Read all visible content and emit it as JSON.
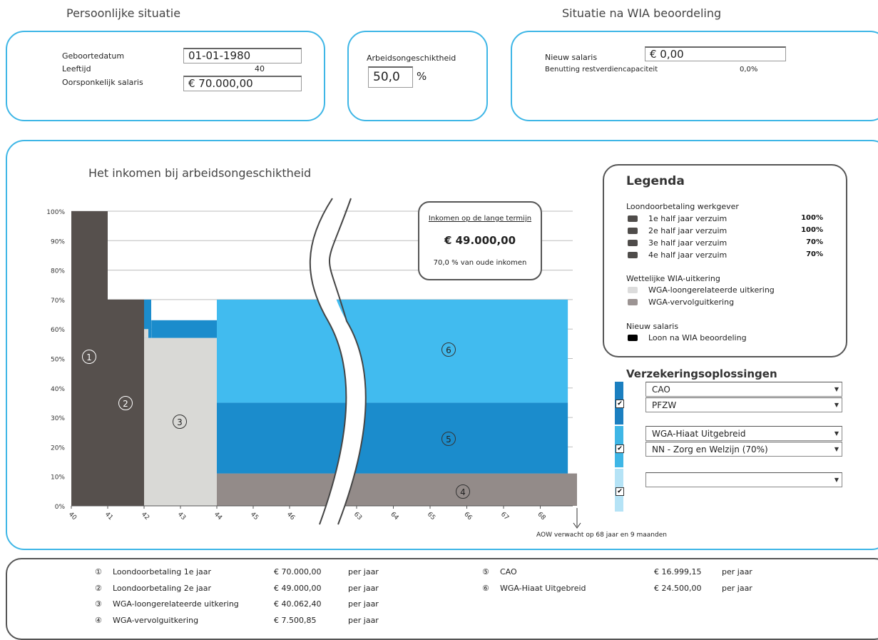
{
  "headers": {
    "personal": "Persoonlijke situatie",
    "after_wia": "Situatie na WIA beoordeling"
  },
  "personal": {
    "dob_label": "Geboortedatum",
    "dob_value": "01-01-1980",
    "age_label": "Leeftijd",
    "age_value": "40",
    "salary_label": "Oorsponkelijk salaris",
    "salary_value": "€ 70.000,00"
  },
  "disability": {
    "label": "Arbeidsongeschiktheid",
    "value": "50,0",
    "unit": "%"
  },
  "after_wia": {
    "new_salary_label": "Nieuw salaris",
    "new_salary_value": "€ 0,00",
    "capacity_label": "Benutting restverdiencapaciteit",
    "capacity_value": "0,0%"
  },
  "chart_title": "Het inkomen bij arbeidsongeschiktheid",
  "long_term": {
    "title": "Inkomen op de lange termijn",
    "amount": "€ 49.000,00",
    "note": "70,0 % van oude inkomen"
  },
  "aow_note": "AOW verwacht op 68 jaar en 9 maanden",
  "chart_data": {
    "type": "area",
    "y_ticks": [
      "0%",
      "10%",
      "20%",
      "30%",
      "40%",
      "50%",
      "60%",
      "70%",
      "80%",
      "90%",
      "100%"
    ],
    "x_ticks": [
      "40",
      "41",
      "42",
      "43",
      "44",
      "45",
      "46",
      "63",
      "64",
      "65",
      "66",
      "67",
      "68"
    ],
    "ylim": [
      0,
      100
    ],
    "axis_break": {
      "from_age": 46,
      "to_age": 63
    },
    "segments": [
      {
        "id": "1",
        "name": "Loondoorbetaling 1e jaar",
        "color": "#56504d",
        "x": [
          40,
          41
        ],
        "y": [
          0,
          100
        ]
      },
      {
        "id": "1b",
        "name": "Loondoorbetaling 1e jaar",
        "color": "#56504d",
        "x": [
          41,
          42
        ],
        "y": [
          0,
          70
        ]
      },
      {
        "id": "3",
        "name": "WGA-loongerelateerde uitkering",
        "color": "#d9d9d6",
        "x": [
          42,
          44
        ],
        "y": [
          0,
          57
        ]
      },
      {
        "id": "4",
        "name": "WGA-vervolguitkering",
        "color": "#938b89",
        "x": [
          44,
          69
        ],
        "y": [
          0,
          11
        ]
      },
      {
        "id": "5",
        "name": "CAO",
        "color": "#1b8ccc",
        "x": [
          44,
          68.75
        ],
        "y": [
          11,
          35
        ]
      },
      {
        "id": "6",
        "name": "WGA-Hiaat Uitgebreid",
        "color": "#41bbef",
        "x": [
          44,
          68.75
        ],
        "y": [
          35,
          70
        ]
      }
    ]
  },
  "legend": {
    "title": "Legenda",
    "group1": "Loondoorbetaling werkgever",
    "items1": [
      {
        "label": "1e half jaar verzuim",
        "pct": "100%",
        "color": "#4f4c4a"
      },
      {
        "label": "2e half jaar verzuim",
        "pct": "100%",
        "color": "#4f4c4a"
      },
      {
        "label": "3e half jaar verzuim",
        "pct": "70%",
        "color": "#4f4c4a"
      },
      {
        "label": "4e half jaar verzuim",
        "pct": "70%",
        "color": "#4f4c4a"
      }
    ],
    "group2": "Wettelijke WIA-uitkering",
    "items2": [
      {
        "label": "WGA-loongerelateerde uitkering",
        "color": "#dcdcdc"
      },
      {
        "label": "WGA-vervolguitkering",
        "color": "#9c9493"
      }
    ],
    "group3": "Nieuw salaris",
    "items3": [
      {
        "label": "Loon na WIA beoordeling",
        "color": "#000000"
      }
    ]
  },
  "insurance": {
    "title": "Verzekeringsoplossingen",
    "row1_a": "CAO",
    "row1_b": "PFZW",
    "row2_a": "WGA-Hiaat Uitgebreid",
    "row2_b": "NN - Zorg en Welzijn (70%)",
    "row3_a": "",
    "check": "✔"
  },
  "footer": {
    "left": [
      {
        "num": "①",
        "label": "Loondoorbetaling 1e jaar",
        "amount": "€ 70.000,00",
        "period": "per jaar"
      },
      {
        "num": "②",
        "label": "Loondoorbetaling 2e jaar",
        "amount": "€ 49.000,00",
        "period": "per jaar"
      },
      {
        "num": "③",
        "label": "WGA-loongerelateerde uitkering",
        "amount": "€ 40.062,40",
        "period": "per jaar"
      },
      {
        "num": "④",
        "label": "WGA-vervolguitkering",
        "amount": "€ 7.500,85",
        "period": "per jaar"
      }
    ],
    "right": [
      {
        "num": "⑤",
        "label": "CAO",
        "amount": "€ 16.999,15",
        "period": "per jaar"
      },
      {
        "num": "⑥",
        "label": "WGA-Hiaat Uitgebreid",
        "amount": "€ 24.500,00",
        "period": "per jaar"
      }
    ]
  },
  "markers": [
    "1",
    "2",
    "3",
    "4",
    "5",
    "6"
  ]
}
